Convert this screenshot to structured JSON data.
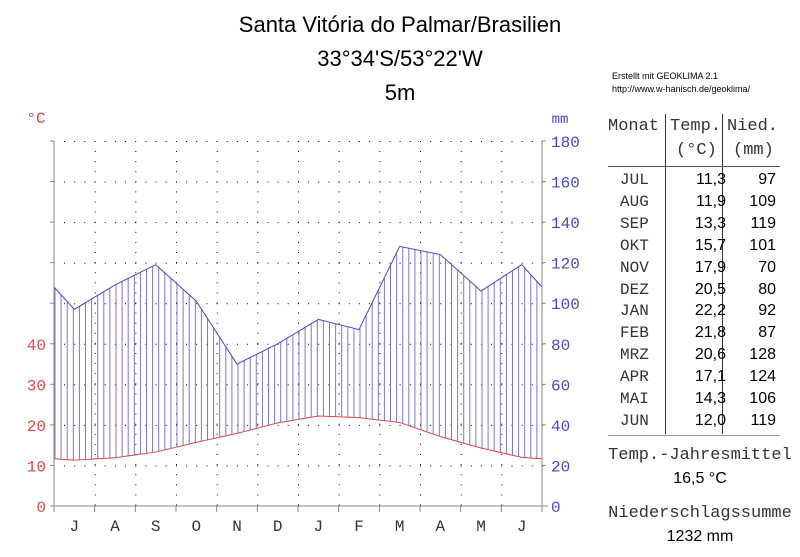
{
  "header": {
    "title": "Santa Vitória do Palmar/Brasilien",
    "coordinates": "33°34'S/53°22'W",
    "elevation": "5m"
  },
  "credit": {
    "line1": "Erstellt mit GEOKLIMA 2.1",
    "line2": "http://www.w-hanisch.de/geoklima/"
  },
  "axes": {
    "left_unit": "°C",
    "right_unit": "mm",
    "left_ticks": [
      "0",
      "10",
      "20",
      "30",
      "40"
    ],
    "right_ticks": [
      "0",
      "20",
      "40",
      "60",
      "80",
      "100",
      "120",
      "140",
      "160",
      "180"
    ],
    "month_letters": [
      "J",
      "A",
      "S",
      "O",
      "N",
      "D",
      "J",
      "F",
      "M",
      "A",
      "M",
      "J"
    ]
  },
  "colors": {
    "temperature": "#e04848",
    "precipitation": "#4848c8",
    "hatch": "#7878d0",
    "axis": "#888888",
    "grid_dots": "#000000"
  },
  "table": {
    "headers": {
      "month": "Monat",
      "temp": "Temp.",
      "temp_unit": "(°C)",
      "precip": "Nied.",
      "precip_unit": "(mm)"
    },
    "rows": [
      {
        "month": "JUL",
        "temp": "11,3",
        "precip": "97"
      },
      {
        "month": "AUG",
        "temp": "11,9",
        "precip": "109"
      },
      {
        "month": "SEP",
        "temp": "13,3",
        "precip": "119"
      },
      {
        "month": "OKT",
        "temp": "15,7",
        "precip": "101"
      },
      {
        "month": "NOV",
        "temp": "17,9",
        "precip": "70"
      },
      {
        "month": "DEZ",
        "temp": "20,5",
        "precip": "80"
      },
      {
        "month": "JAN",
        "temp": "22,2",
        "precip": "92"
      },
      {
        "month": "FEB",
        "temp": "21,8",
        "precip": "87"
      },
      {
        "month": "MRZ",
        "temp": "20,6",
        "precip": "128"
      },
      {
        "month": "APR",
        "temp": "17,1",
        "precip": "124"
      },
      {
        "month": "MAI",
        "temp": "14,3",
        "precip": "106"
      },
      {
        "month": "JUN",
        "temp": "12,0",
        "precip": "119"
      }
    ]
  },
  "summary": {
    "temp_label": "Temp.-Jahresmittel",
    "temp_value": "16,5 °C",
    "precip_label": "Niederschlagssumme",
    "precip_value": "1232 mm"
  },
  "chart_data": {
    "type": "line",
    "title": "Santa Vitória do Palmar/Brasilien — 33°34'S/53°22'W — 5m",
    "categories": [
      "Jul",
      "Aug",
      "Sep",
      "Okt",
      "Nov",
      "Dez",
      "Jan",
      "Feb",
      "Mrz",
      "Apr",
      "Mai",
      "Jun"
    ],
    "series": [
      {
        "name": "Temperatur (°C)",
        "axis": "left",
        "color": "#e04848",
        "values": [
          11.3,
          11.9,
          13.3,
          15.7,
          17.9,
          20.5,
          22.2,
          21.8,
          20.6,
          17.1,
          14.3,
          12.0
        ]
      },
      {
        "name": "Niederschlag (mm)",
        "axis": "right",
        "color": "#4848c8",
        "values": [
          97,
          109,
          119,
          101,
          70,
          80,
          92,
          87,
          128,
          124,
          106,
          119
        ]
      }
    ],
    "xlabel": "",
    "ylabel_left": "°C",
    "ylabel_right": "mm",
    "ylim_left": [
      0,
      40
    ],
    "ylim_right": [
      0,
      180
    ],
    "annual_mean_temp": 16.5,
    "annual_precip_total": 1232,
    "grid": "dotted",
    "humid_fill": "vertical hatch where precipitation exceeds 2×temperature"
  }
}
